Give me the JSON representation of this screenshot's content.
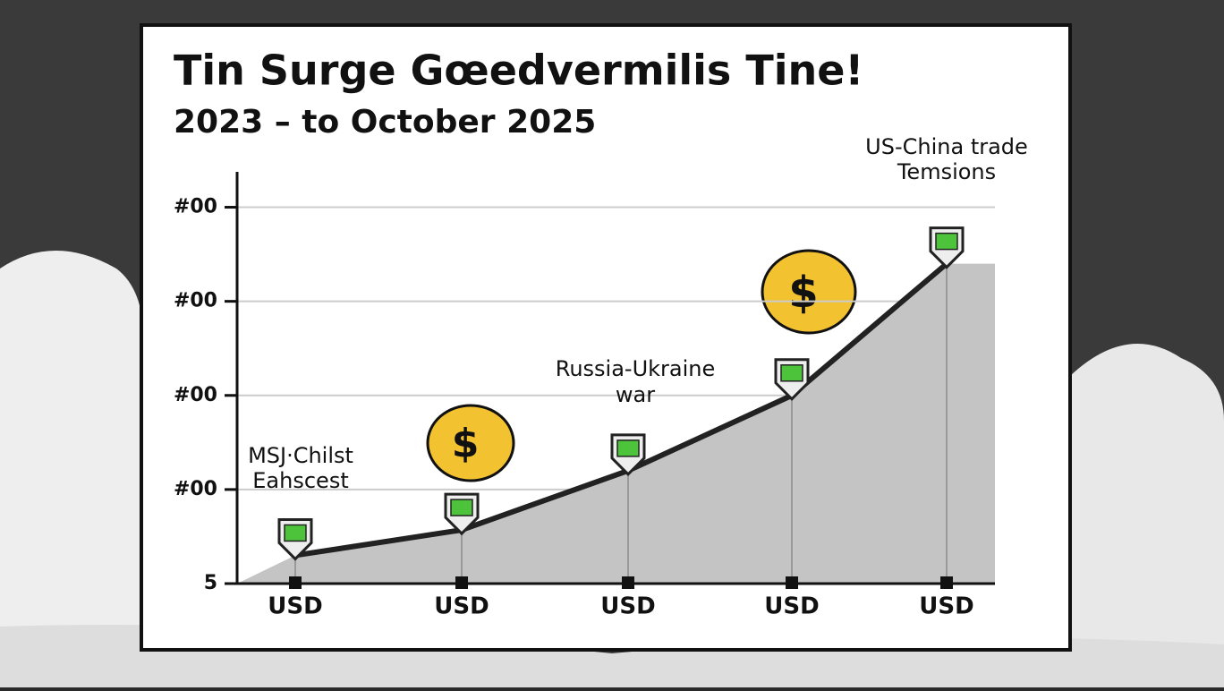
{
  "chart_data": {
    "type": "area",
    "title": "Tin Surge Gœedvermilis Tine!",
    "subtitle": "2023 – to October 2025",
    "categories": [
      "USD",
      "USD",
      "USD",
      "USD",
      "USD"
    ],
    "values": [
      0.3,
      0.57,
      1.2,
      2.0,
      3.4
    ],
    "color": "#222222",
    "fill": "#c4c4c4",
    "marker_color": "#4cc33a",
    "ylim": [
      0,
      4.3
    ],
    "yticks": [
      {
        "value": 0,
        "label": "5"
      },
      {
        "value": 1,
        "label": "#00"
      },
      {
        "value": 2,
        "label": "#00"
      },
      {
        "value": 3,
        "label": "#00"
      },
      {
        "value": 4,
        "label": "#00"
      }
    ],
    "grid": true,
    "annotations": [
      "MSJ·Chilst",
      "Eahscest",
      "Russia-Ukraine",
      "war",
      "US-China trade",
      "Temsions"
    ]
  }
}
